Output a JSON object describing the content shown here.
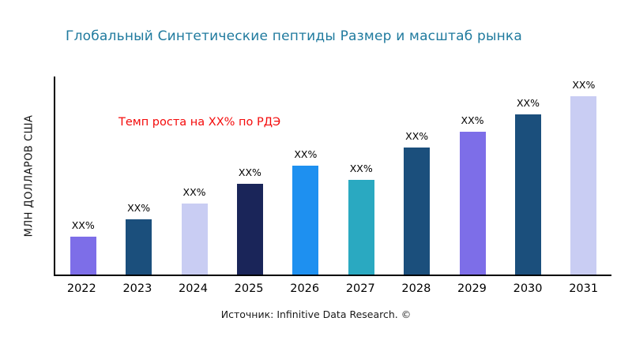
{
  "title": "Глобальный Синтетические пептиды Размер и масштаб рынка",
  "y_axis_label": "МЛН ДОЛЛАРОВ США",
  "annotation": "Темп роста на XX% по РДЭ",
  "source": "Источник: Infinitive Data Research. ©",
  "colors": {
    "title": "#1f7a9e",
    "annotation": "#f40b0b",
    "axis": "#000000",
    "background": "#ffffff"
  },
  "chart_data": {
    "type": "bar",
    "title": "Глобальный Синтетические пептиды Размер и масштаб рынка",
    "xlabel": "",
    "ylabel": "МЛН ДОЛЛАРОВ США",
    "ylim": [
      0,
      100
    ],
    "grid": false,
    "legend": "none",
    "categories": [
      "2022",
      "2023",
      "2024",
      "2025",
      "2026",
      "2027",
      "2028",
      "2029",
      "2030",
      "2031"
    ],
    "values": [
      19,
      28,
      36,
      46,
      55,
      48,
      64,
      72,
      81,
      90
    ],
    "bar_labels": [
      "XX%",
      "XX%",
      "XX%",
      "XX%",
      "XX%",
      "XX%",
      "XX%",
      "XX%",
      "XX%",
      "XX%"
    ],
    "bar_colors": [
      "#7d6ee8",
      "#1b4f7c",
      "#c9cdf3",
      "#1a2559",
      "#1e90f0",
      "#2aa9c1",
      "#1b4f7c",
      "#7d6ee8",
      "#1b4f7c",
      "#c9cdf3"
    ],
    "annotations": [
      "Темп роста на XX% по РДЭ"
    ]
  }
}
